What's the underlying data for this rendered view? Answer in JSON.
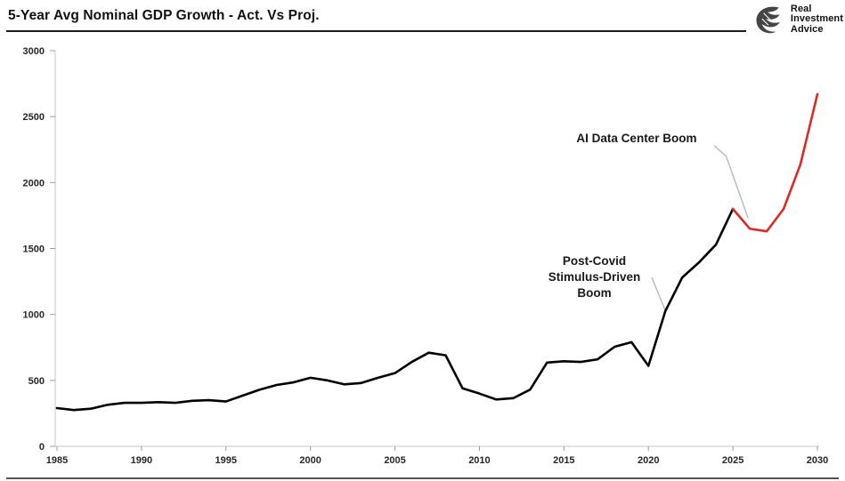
{
  "header": {
    "title": "5-Year Avg Nominal GDP Growth - Act. Vs Proj.",
    "logo": {
      "line1": "Real",
      "line2": "Investment",
      "line3": "Advice"
    }
  },
  "chart_data": {
    "type": "line",
    "title": "5-Year Avg Nominal GDP Growth - Act. Vs Proj.",
    "xlabel": "",
    "ylabel": "",
    "x_range": [
      1985,
      2030
    ],
    "ylim": [
      0,
      3000
    ],
    "yticks": [
      0,
      500,
      1000,
      1500,
      2000,
      2500,
      3000
    ],
    "xticks": [
      1985,
      1990,
      1995,
      2000,
      2005,
      2010,
      2015,
      2020,
      2025,
      2030
    ],
    "grid": false,
    "legend": "none",
    "axis_color": "#c6c6c6",
    "tick_color": "#9c9c9c",
    "series": [
      {
        "name": "Actual",
        "color": "#000000",
        "start_year": 1985,
        "values": [
          290,
          275,
          285,
          315,
          330,
          330,
          335,
          330,
          345,
          350,
          340,
          385,
          430,
          465,
          485,
          520,
          500,
          470,
          480,
          520,
          555,
          640,
          710,
          690,
          440,
          400,
          355,
          365,
          430,
          635,
          645,
          640,
          660,
          755,
          790,
          610,
          1025,
          1280,
          1395,
          1530,
          1800
        ]
      },
      {
        "name": "Projected",
        "color": "#dc2a25",
        "start_year": 2025,
        "values": [
          1800,
          1650,
          1630,
          1800,
          2140,
          2670
        ]
      }
    ],
    "annotations": [
      {
        "id": "ai-boom",
        "lines": [
          "AI Data Center Boom"
        ],
        "anchor": {
          "year": 2019.3,
          "value": 2330
        },
        "leader": [
          [
            2023.9,
            2280
          ],
          [
            2024.6,
            2200
          ],
          [
            2025.9,
            1730
          ]
        ],
        "leader_color": "#b9b9b9"
      },
      {
        "id": "post-covid",
        "lines": [
          "Post-Covid",
          "Stimulus-Driven",
          "Boom"
        ],
        "anchor": {
          "year": 2016.8,
          "value": 1280
        },
        "leader": [
          [
            2020.2,
            1280
          ],
          [
            2021.0,
            1030
          ]
        ],
        "leader_color": "#b9b9b9"
      }
    ]
  }
}
